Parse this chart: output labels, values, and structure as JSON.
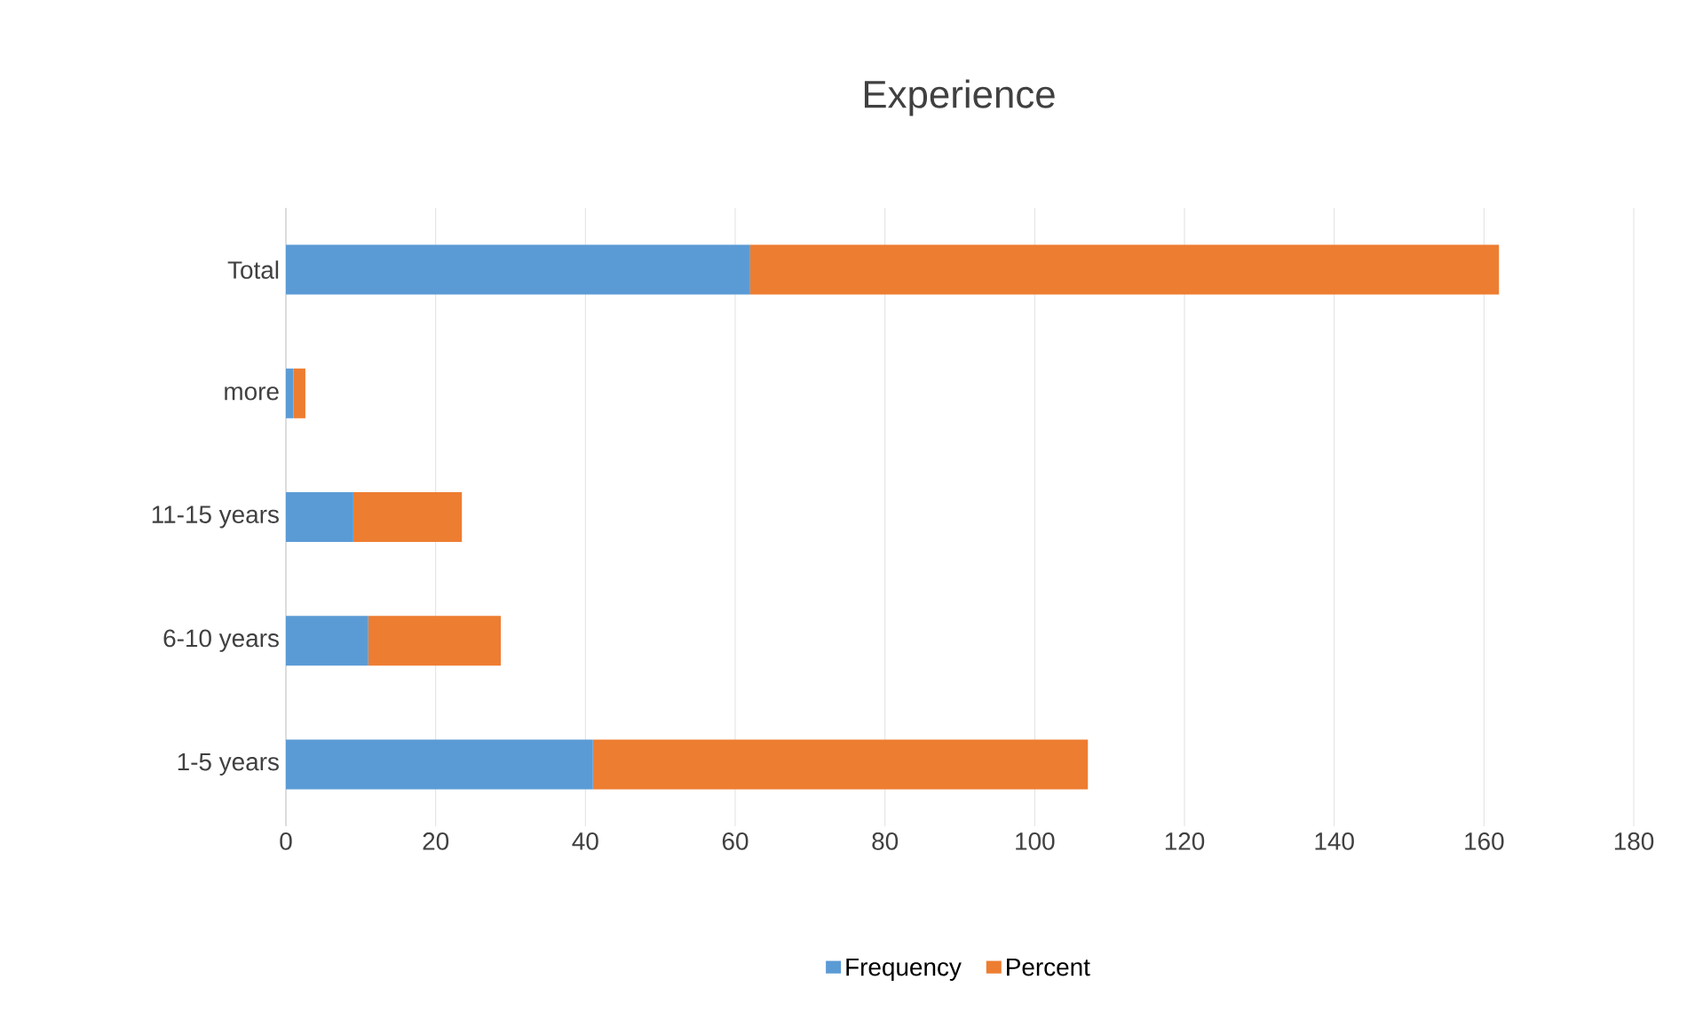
{
  "chart_data": {
    "type": "bar",
    "orientation": "horizontal",
    "stacked": true,
    "title": "Experience",
    "categories": [
      "Total",
      "more",
      "11-15 years",
      "6-10 years",
      "1-5 years"
    ],
    "series": [
      {
        "name": "Frequency",
        "color": "#5b9bd5",
        "values": [
          62,
          1,
          9,
          11,
          41
        ]
      },
      {
        "name": "Percent",
        "color": "#ed7d31",
        "values": [
          100,
          1.6,
          14.5,
          17.7,
          66.1
        ]
      }
    ],
    "xlim": [
      0,
      180
    ],
    "xticks": [
      0,
      20,
      40,
      60,
      80,
      100,
      120,
      140,
      160,
      180
    ],
    "grid": "x",
    "legend": "bottom"
  }
}
